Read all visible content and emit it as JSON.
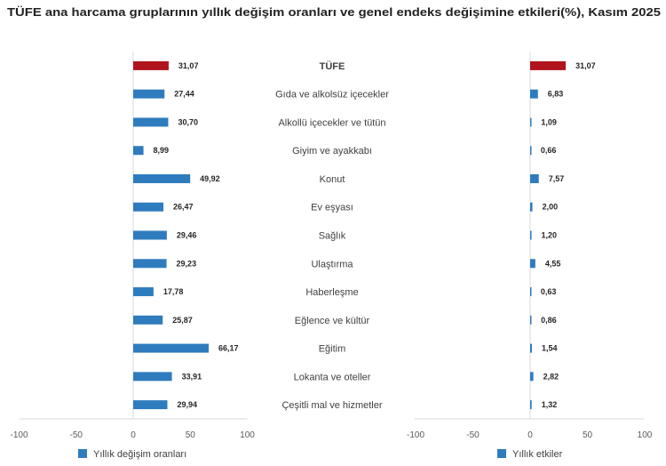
{
  "title": "TÜFE ana harcama gruplarının yıllık değişim oranları ve genel endeks değişimine etkileri(%), Kasım 2025",
  "colors": {
    "highlight": "#B0141C",
    "series": "#2E7CBE",
    "grid": "#d9d9d9"
  },
  "categories": [
    "TÜFE",
    "Gıda ve alkolsüz içecekler",
    "Alkollü içecekler ve tütün",
    "Giyim ve ayakkabı",
    "Konut",
    "Ev eşyası",
    "Sağlık",
    "Ulaştırma",
    "Haberleşme",
    "Eğlence ve kültür",
    "Eğitim",
    "Lokanta ve oteller",
    "Çeşitli mal ve hizmetler"
  ],
  "chart_data": [
    {
      "type": "bar",
      "orientation": "horizontal",
      "title": "TÜFE ana harcama gruplarının yıllık değişim oranları ve genel endeks değişimine etkileri(%), Kasım 2025",
      "series_name": "Yıllık değişim oranları",
      "legend": "Yıllık değişim oranları",
      "legend_position": "bottom",
      "categories": [
        "TÜFE",
        "Gıda ve alkolsüz içecekler",
        "Alkollü içecekler ve tütün",
        "Giyim ve ayakkabı",
        "Konut",
        "Ev eşyası",
        "Sağlık",
        "Ulaştırma",
        "Haberleşme",
        "Eğlence ve kültür",
        "Eğitim",
        "Lokanta ve oteller",
        "Çeşitli mal ve hizmetler"
      ],
      "values": [
        31.07,
        27.44,
        30.7,
        8.99,
        49.92,
        26.47,
        29.46,
        29.23,
        17.78,
        25.87,
        66.17,
        33.91,
        29.94
      ],
      "value_labels": [
        "31,07",
        "27,44",
        "30,70",
        "8,99",
        "49,92",
        "26,47",
        "29,46",
        "29,23",
        "17,78",
        "25,87",
        "66,17",
        "33,91",
        "29,94"
      ],
      "highlight_index": 0,
      "xlim": [
        -100,
        100
      ],
      "xticks": [
        "-100",
        "-50",
        "0",
        "50",
        "100"
      ],
      "xtick_values": [
        -100,
        -50,
        0,
        50,
        100
      ],
      "grid": false,
      "xlabel": "",
      "ylabel": ""
    },
    {
      "type": "bar",
      "orientation": "horizontal",
      "title": "TÜFE ana harcama gruplarının yıllık değişim oranları ve genel endeks değişimine etkileri(%), Kasım 2025",
      "series_name": "Yıllık etkiler",
      "legend": "Yıllık etkiler",
      "legend_position": "bottom",
      "categories": [
        "TÜFE",
        "Gıda ve alkolsüz içecekler",
        "Alkollü içecekler ve tütün",
        "Giyim ve ayakkabı",
        "Konut",
        "Ev eşyası",
        "Sağlık",
        "Ulaştırma",
        "Haberleşme",
        "Eğlence ve kültür",
        "Eğitim",
        "Lokanta ve oteller",
        "Çeşitli mal ve hizmetler"
      ],
      "values": [
        31.07,
        6.83,
        1.09,
        0.66,
        7.57,
        2.0,
        1.2,
        4.55,
        0.63,
        0.86,
        1.54,
        2.82,
        1.32
      ],
      "value_labels": [
        "31,07",
        "6,83",
        "1,09",
        "0,66",
        "7,57",
        "2,00",
        "1,20",
        "4,55",
        "0,63",
        "0,86",
        "1,54",
        "2,82",
        "1,32"
      ],
      "highlight_index": 0,
      "xlim": [
        -100,
        100
      ],
      "xticks": [
        "-100",
        "-50",
        "0",
        "50",
        "100"
      ],
      "xtick_values": [
        -100,
        -50,
        0,
        50,
        100
      ],
      "grid": false,
      "xlabel": "",
      "ylabel": ""
    }
  ]
}
